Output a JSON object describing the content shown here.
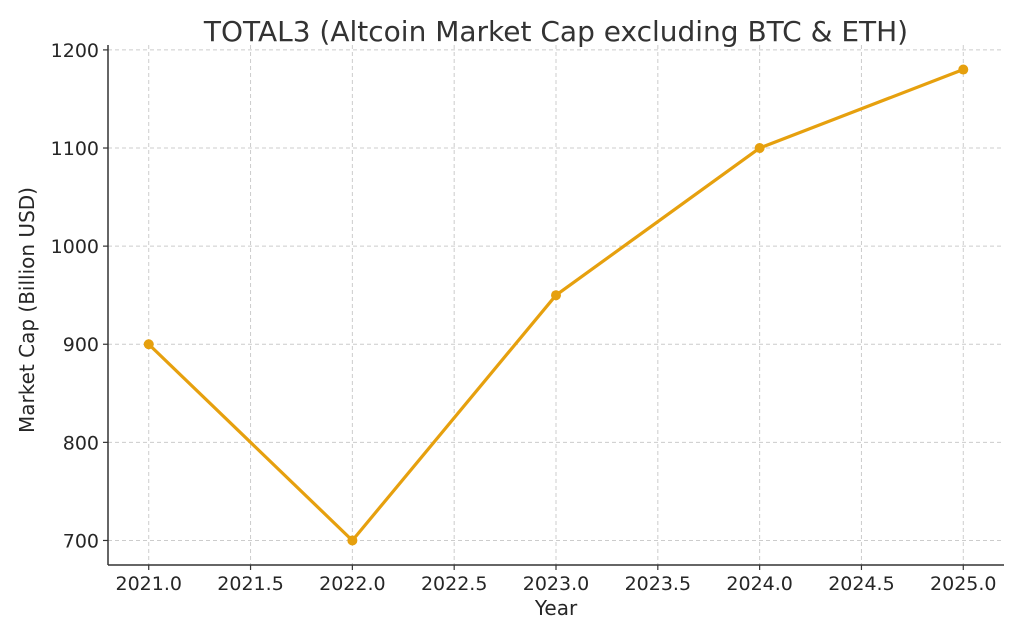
{
  "chart_data": {
    "type": "line",
    "title": "TOTAL3 (Altcoin Market Cap excluding BTC & ETH)",
    "xlabel": "Year",
    "ylabel": "Market Cap (Billion USD)",
    "xlim": [
      2020.8,
      2025.2
    ],
    "ylim": [
      675,
      1205
    ],
    "x_ticks": [
      "2021.0",
      "2021.5",
      "2022.0",
      "2022.5",
      "2023.0",
      "2023.5",
      "2024.0",
      "2024.5",
      "2025.0"
    ],
    "y_ticks": [
      "700",
      "800",
      "900",
      "1000",
      "1100",
      "1200"
    ],
    "grid": true,
    "series": [
      {
        "color": "#e6a00e",
        "marker": "circle",
        "x": [
          2021,
          2022,
          2023,
          2024,
          2025
        ],
        "y": [
          900,
          700,
          950,
          1100,
          1180
        ]
      }
    ]
  }
}
